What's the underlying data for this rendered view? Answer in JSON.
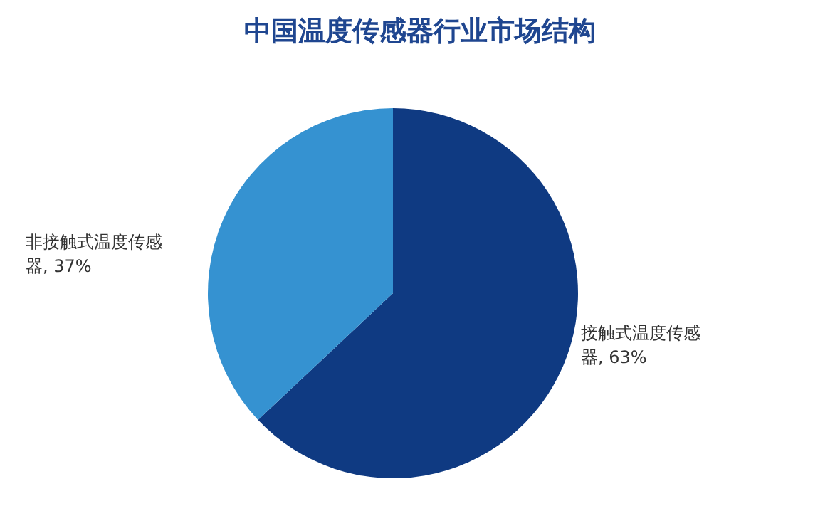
{
  "chart_data": {
    "type": "pie",
    "title": "中国温度传感器行业市场结构",
    "categories": [
      "接触式温度传感器",
      "非接触式温度传感器"
    ],
    "values": [
      63,
      37
    ],
    "colors": [
      "#0f3a82",
      "#3592d1"
    ],
    "value_labels": [
      ", 63%",
      ", 37%"
    ],
    "legend": false
  }
}
